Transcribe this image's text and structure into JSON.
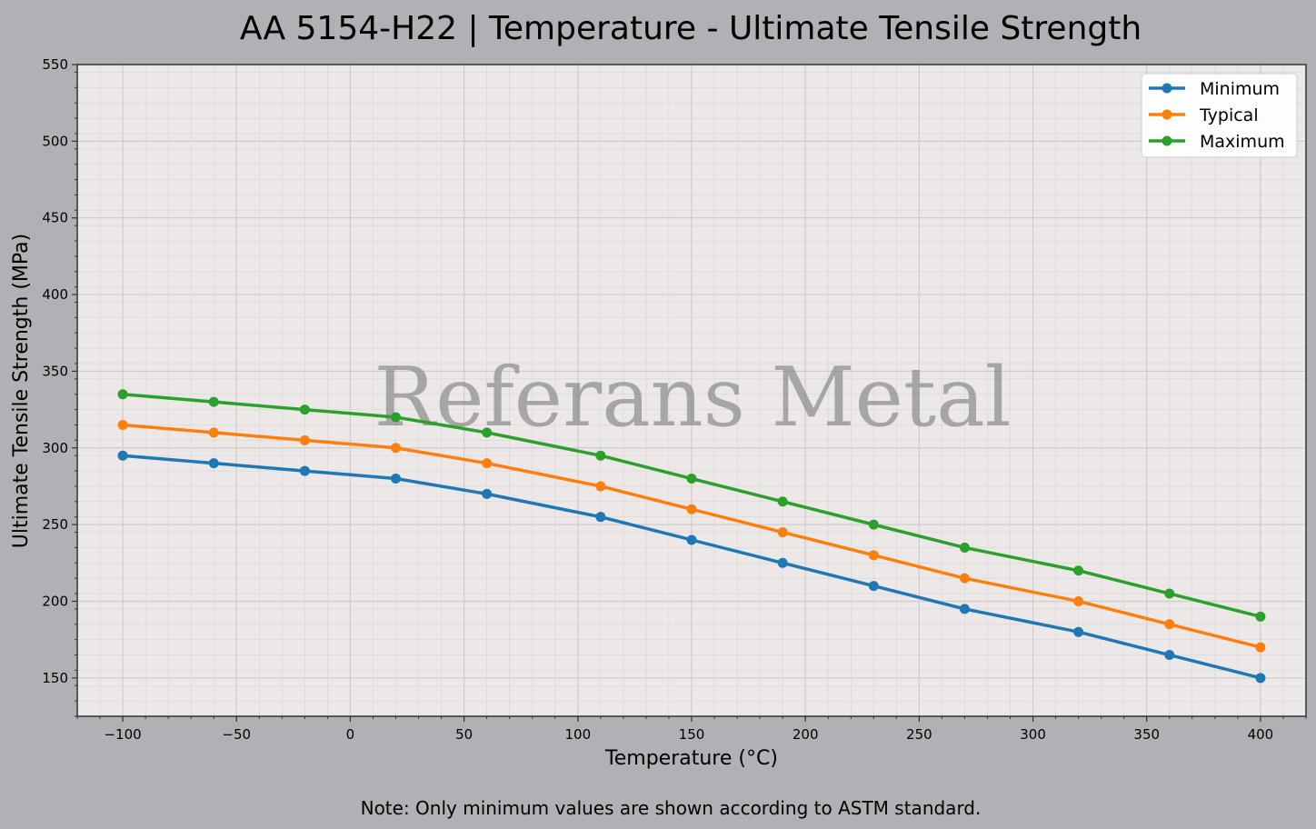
{
  "chart_data": {
    "type": "line",
    "title": "AA 5154-H22 | Temperature - Ultimate Tensile Strength",
    "xlabel": "Temperature (°C)",
    "ylabel": "Ultimate Tensile Strength (MPa)",
    "xlim": [
      -120,
      420
    ],
    "ylim": [
      125,
      550
    ],
    "xticks": [
      -100,
      -50,
      0,
      50,
      100,
      150,
      200,
      250,
      300,
      350,
      400
    ],
    "yticks": [
      150,
      200,
      250,
      300,
      350,
      400,
      450,
      500,
      550
    ],
    "grid": true,
    "legend_position": "top-right",
    "x": [
      -100,
      -60,
      -20,
      20,
      60,
      110,
      150,
      190,
      230,
      270,
      320,
      360,
      400
    ],
    "series": [
      {
        "name": "Minimum",
        "color": "#1f77b4",
        "values": [
          295,
          290,
          285,
          280,
          270,
          255,
          240,
          225,
          210,
          195,
          180,
          165,
          150
        ]
      },
      {
        "name": "Typical",
        "color": "#ff7f0e",
        "values": [
          315,
          310,
          305,
          300,
          290,
          275,
          260,
          245,
          230,
          215,
          200,
          185,
          170
        ]
      },
      {
        "name": "Maximum",
        "color": "#2ca02c",
        "values": [
          335,
          330,
          325,
          320,
          310,
          295,
          280,
          265,
          250,
          235,
          220,
          205,
          190
        ]
      }
    ]
  },
  "watermark": "Referans Metal",
  "note": "Note: Only minimum values are shown according to ASTM standard.",
  "colors": {
    "figure_background": "#b1b0b5",
    "plot_background": "#ebe8e7"
  }
}
